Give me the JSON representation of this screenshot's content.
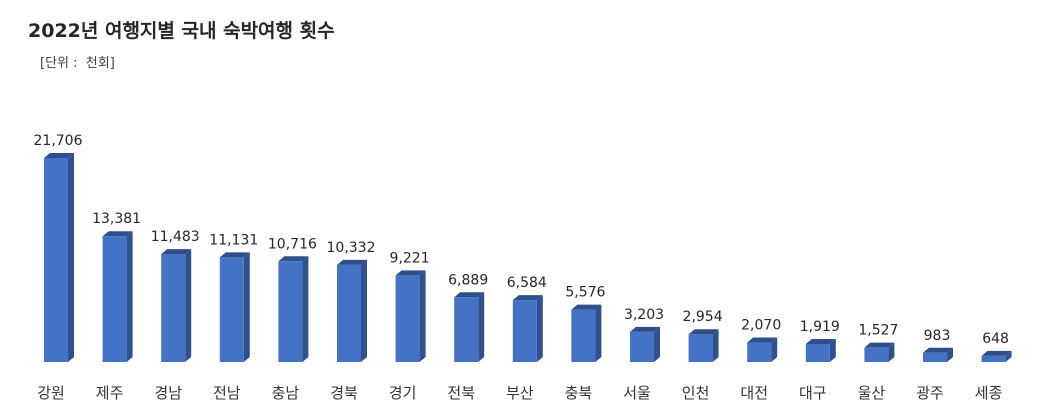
{
  "chart_data": {
    "type": "bar",
    "title": "2022년 여행지별 국내 숙박여행 횟수",
    "unit_label": "[단위 :  천회]",
    "categories": [
      "강원",
      "제주",
      "경남",
      "전남",
      "충남",
      "경북",
      "경기",
      "전북",
      "부산",
      "충북",
      "서울",
      "인천",
      "대전",
      "대구",
      "울산",
      "광주",
      "세종"
    ],
    "values": [
      21706,
      13381,
      11483,
      11131,
      10716,
      10332,
      9221,
      6889,
      6584,
      5576,
      3203,
      2954,
      2070,
      1919,
      1527,
      983,
      648
    ],
    "value_labels": [
      "21,706",
      "13,381",
      "11,483",
      "11,131",
      "10,716",
      "10,332",
      "9,221",
      "6,889",
      "6,584",
      "5,576",
      "3,203",
      "2,954",
      "2,070",
      "1,919",
      "1,527",
      "983",
      "648"
    ],
    "xlabel": "",
    "ylabel": "",
    "ylim": [
      0,
      23000
    ],
    "grid": false,
    "legend": "none",
    "colors": {
      "bar_front": "#4472C4",
      "bar_side": "#2F528F",
      "bar_top": "#2E4F8C"
    }
  }
}
